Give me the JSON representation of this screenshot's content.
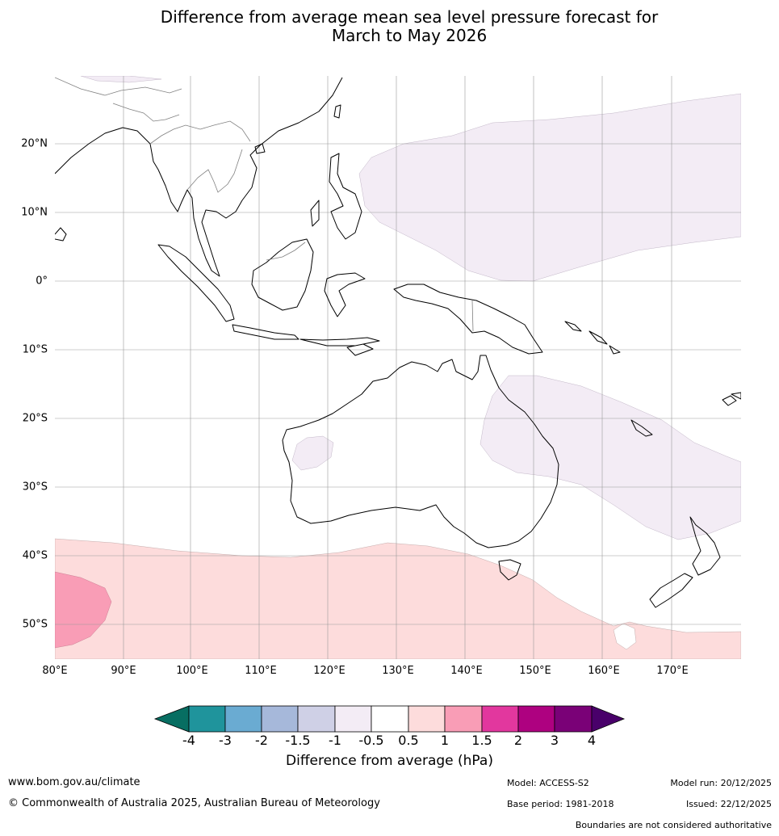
{
  "title_line1": "Difference from average mean sea level pressure forecast for",
  "title_line2": "March to May 2026",
  "lat_labels": [
    "20°N",
    "10°N",
    "0°",
    "10°S",
    "20°S",
    "30°S",
    "40°S",
    "50°S"
  ],
  "lon_labels": [
    "80°E",
    "90°E",
    "100°E",
    "110°E",
    "120°E",
    "130°E",
    "140°E",
    "150°E",
    "160°E",
    "170°E"
  ],
  "colorbar": {
    "title": "Difference from average (hPa)",
    "ticks": [
      "-4",
      "-3",
      "-2",
      "-1.5",
      "-1",
      "-0.5",
      "0.5",
      "1",
      "1.5",
      "2",
      "3",
      "4"
    ],
    "colors": [
      "#076e62",
      "#1f949c",
      "#6aabd2",
      "#a6b8da",
      "#cfd0e6",
      "#f3ecf5",
      "#ffffff",
      "#fddcdc",
      "#f99db6",
      "#e2379e",
      "#ae0180",
      "#7a0177",
      "#49006a"
    ]
  },
  "field_colors": {
    "purple_light": "#f3ecf5",
    "pink_light": "#fddcdc",
    "pink_medium": "#f99db6"
  },
  "footer": {
    "website": "www.bom.gov.au/climate",
    "copyright": "© Commonwealth of Australia 2025, Australian Bureau of Meteorology",
    "model": "Model: ACCESS-S2",
    "base_period": "Base period: 1981-2018",
    "model_run": "Model run: 20/12/2025",
    "issued": "Issued: 22/12/2025",
    "disclaimer": "Boundaries are not considered authoritative"
  }
}
